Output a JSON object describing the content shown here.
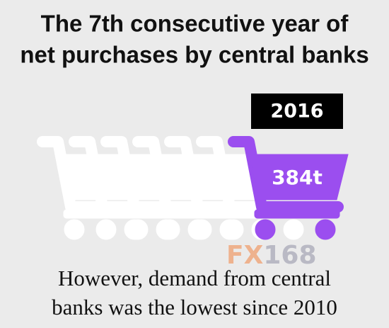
{
  "title": {
    "line1": "The 7th consecutive year of",
    "line2": "net purchases by central banks"
  },
  "year": "2016",
  "amount": "384t",
  "watermark": {
    "part1": "FX",
    "part2": "168"
  },
  "footer": {
    "line1": "However, demand from central",
    "line2": "banks was the lowest since 2010"
  }
}
